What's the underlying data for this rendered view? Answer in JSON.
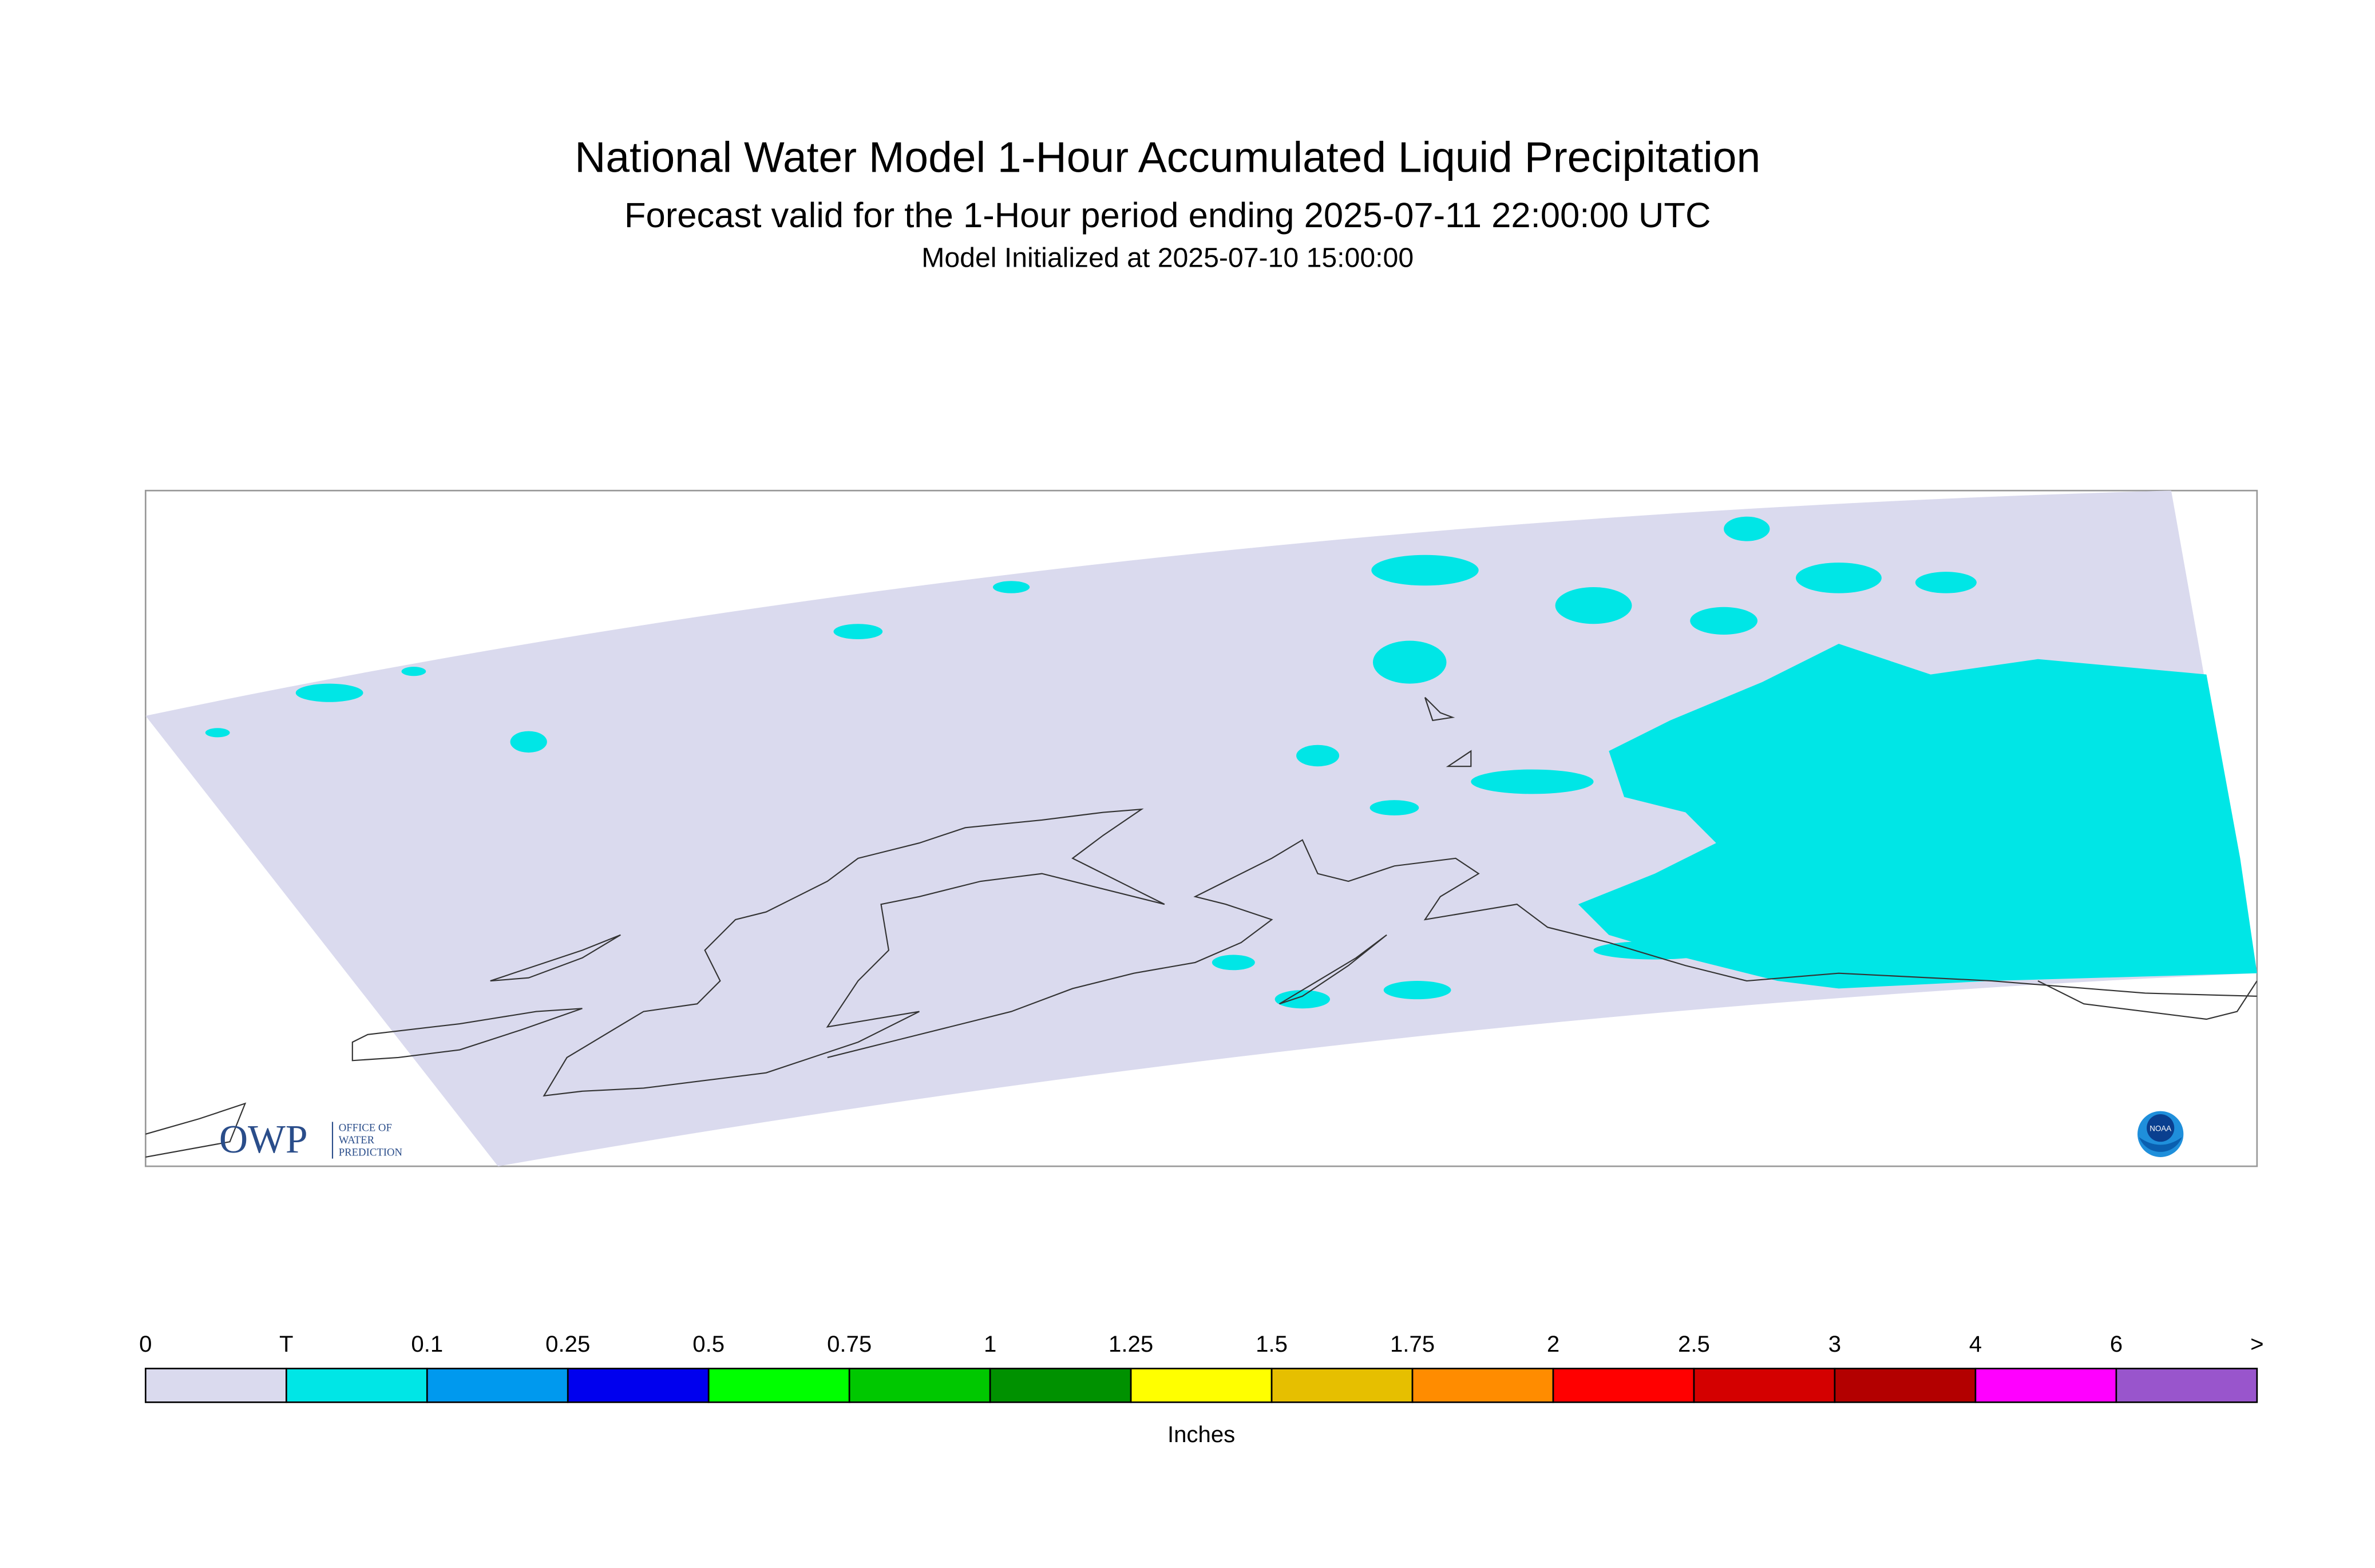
{
  "header": {
    "title": "National Water Model 1-Hour Accumulated Liquid Precipitation",
    "subtitle": "Forecast valid for the 1-Hour period ending 2025-07-11 22:00:00 UTC",
    "initialized": "Model Initialized at 2025-07-10 15:00:00"
  },
  "legend": {
    "labels": [
      "0",
      "T",
      "0.1",
      "0.25",
      "0.5",
      "0.75",
      "1",
      "1.25",
      "1.5",
      "1.75",
      "2",
      "2.5",
      "3",
      "4",
      "6",
      ">"
    ],
    "colors": [
      "#dadaee",
      "#00e6e6",
      "#0099ee",
      "#0000ee",
      "#00ff00",
      "#00c800",
      "#009100",
      "#ffff00",
      "#e6bf00",
      "#ff8c00",
      "#ff0000",
      "#d40000",
      "#b30000",
      "#ff00ff",
      "#9955cc"
    ],
    "unit": "Inches"
  },
  "logos": {
    "owp": "OWP",
    "owp_lines": [
      "OFFICE OF",
      "WATER",
      "PREDICTION"
    ],
    "noaa": "NOAA"
  }
}
